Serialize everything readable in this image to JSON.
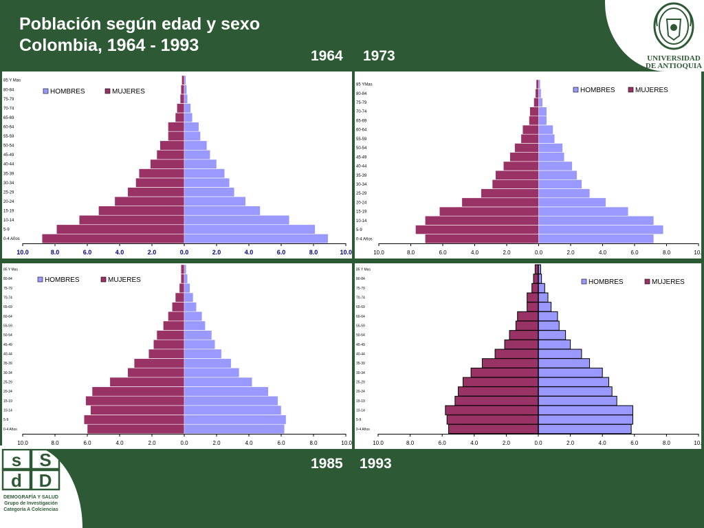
{
  "title_line1": "Población según edad y sexo",
  "title_line2": "Colombia, 1964 - 1993",
  "logo_text": [
    "UNIVERSIDAD",
    "DE ANTIOQUIA"
  ],
  "logo_ds_text": [
    "DEMOGRAFÍA Y SALUD",
    "Grupo de Investigación",
    "Categoría A Colciencias"
  ],
  "colors": {
    "background": "#2d5a34",
    "hombres": "#9999ff",
    "mujeres": "#993366",
    "white": "#ffffff"
  },
  "chart_data": [
    {
      "type": "bar",
      "year_label": "1964",
      "categories": [
        "0-4 Años",
        "5-9",
        "10-14",
        "15-19",
        "20-24",
        "25-29",
        "30-34",
        "35-39",
        "40-44",
        "45-49",
        "50-54",
        "55-59",
        "60-64",
        "65-69",
        "70-74",
        "75-79",
        "80-84",
        "85 Y Mas"
      ],
      "series": [
        {
          "name": "HOMBRES",
          "values": [
            8.9,
            8.1,
            6.5,
            4.7,
            3.8,
            3.1,
            2.8,
            2.5,
            2.0,
            1.6,
            1.4,
            1.0,
            0.9,
            0.5,
            0.4,
            0.2,
            0.15,
            0.1
          ]
        },
        {
          "name": "MUJERES",
          "values": [
            8.8,
            7.9,
            6.5,
            5.3,
            4.3,
            3.5,
            3.0,
            2.8,
            2.1,
            1.7,
            1.5,
            1.0,
            1.0,
            0.55,
            0.45,
            0.25,
            0.2,
            0.15
          ]
        }
      ],
      "xlim": [
        -10,
        10
      ],
      "x_tick_labels": [
        "10.0",
        "8.0",
        "6.0",
        "4.0",
        "2.0",
        "0.0",
        "2.0",
        "4.0",
        "6.0",
        "8.0",
        "10.0"
      ],
      "tick_bold": true,
      "legend": "top-left"
    },
    {
      "type": "bar",
      "year_label": "1973",
      "categories": [
        "0-4 Años",
        "5-9",
        "10-14",
        "15-19",
        "20-24",
        "25-29",
        "30-34",
        "35-39",
        "40-44",
        "45-49",
        "50-54",
        "55-59",
        "60-64",
        "65-69",
        "70-74",
        "75-79",
        "80-84",
        "85 YMas"
      ],
      "series": [
        {
          "name": "HOMBRES",
          "values": [
            7.2,
            7.8,
            7.2,
            5.6,
            4.2,
            3.2,
            2.7,
            2.4,
            2.1,
            1.6,
            1.5,
            1.0,
            0.9,
            0.5,
            0.5,
            0.25,
            0.15,
            0.1
          ]
        },
        {
          "name": "MUJERES",
          "values": [
            7.1,
            7.7,
            7.1,
            6.2,
            4.8,
            3.6,
            2.9,
            2.7,
            2.2,
            1.8,
            1.5,
            1.1,
            1.0,
            0.6,
            0.55,
            0.3,
            0.2,
            0.15
          ]
        }
      ],
      "xlim": [
        -10,
        10
      ],
      "x_tick_labels": [
        "10.0",
        "8.0",
        "6.0",
        "4.0",
        "2.0",
        "0.0",
        "2.0",
        "4.0",
        "6.0",
        "8.0",
        "10.0"
      ],
      "tick_bold": false,
      "legend": "top-right"
    },
    {
      "type": "bar",
      "year_label": "1985",
      "categories": [
        "0-4 Años",
        "5-9",
        "10-14",
        "15-19",
        "20-24",
        "25-29",
        "30-34",
        "35-39",
        "40-44",
        "45-49",
        "50-54",
        "55-59",
        "60-64",
        "65-69",
        "70-74",
        "75-79",
        "80-84",
        "85 Y Mas"
      ],
      "series": [
        {
          "name": "HOMBRES",
          "values": [
            6.2,
            6.3,
            6.0,
            5.8,
            5.2,
            4.2,
            3.4,
            2.9,
            2.3,
            1.9,
            1.7,
            1.3,
            1.1,
            0.75,
            0.55,
            0.35,
            0.2,
            0.12
          ]
        },
        {
          "name": "MUJERES",
          "values": [
            6.0,
            6.2,
            5.8,
            6.1,
            5.7,
            4.6,
            3.5,
            3.1,
            2.2,
            1.9,
            1.7,
            1.3,
            1.0,
            0.75,
            0.55,
            0.3,
            0.2,
            0.2
          ]
        }
      ],
      "xlim": [
        -10,
        10
      ],
      "x_tick_labels": [
        "10.0",
        "8.0",
        "6.0",
        "4.0",
        "2.0",
        "0.0",
        "2.0",
        "4.0",
        "6.0",
        "8.0",
        "10.0"
      ],
      "tick_bold": false,
      "legend": "top-left"
    },
    {
      "type": "bar",
      "year_label": "1993",
      "categories": [
        "0-4 Años",
        "5-9",
        "10-14",
        "15-19",
        "20-24",
        "25-29",
        "30-34",
        "35-39",
        "40-44",
        "45-49",
        "50-54",
        "55-59",
        "60-64",
        "65-69",
        "70-74",
        "75-79",
        "80-84",
        "85 Y Mas"
      ],
      "series": [
        {
          "name": "HOMBRES",
          "values": [
            5.8,
            5.9,
            5.9,
            4.9,
            4.6,
            4.4,
            4.0,
            3.2,
            2.7,
            2.0,
            1.7,
            1.3,
            1.2,
            0.8,
            0.6,
            0.4,
            0.2,
            0.15
          ]
        },
        {
          "name": "MUJERES",
          "values": [
            5.6,
            5.7,
            5.8,
            5.2,
            5.0,
            4.7,
            4.2,
            3.5,
            2.7,
            2.1,
            1.8,
            1.4,
            1.3,
            0.7,
            0.7,
            0.4,
            0.3,
            0.2
          ]
        }
      ],
      "xlim": [
        -10,
        10
      ],
      "x_tick_labels": [
        "10.0",
        "8.0",
        "6.0",
        "4.0",
        "2.0",
        "0.0",
        "2.0",
        "4.0",
        "6.0",
        "8.0",
        "10.0"
      ],
      "tick_bold": false,
      "legend": "top-right",
      "bar_outline": "#000000"
    }
  ]
}
